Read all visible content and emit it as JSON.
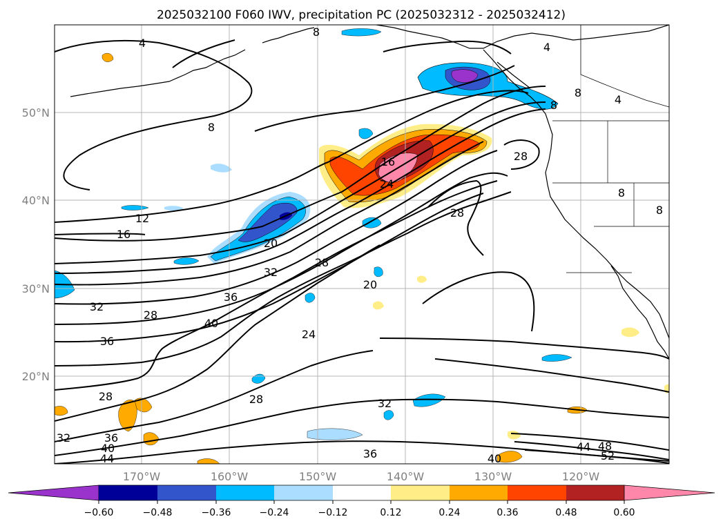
{
  "title": "2025032100 F060 IWV, precipitation PC (2025032312 - 2025032412)",
  "map": {
    "lon_labels": [
      "170°W",
      "160°W",
      "150°W",
      "140°W",
      "130°W",
      "120°W"
    ],
    "lat_labels": [
      "50°N",
      "40°N",
      "30°N",
      "20°N"
    ],
    "contour_labels": [
      "4",
      "4",
      "8",
      "8",
      "4",
      "8",
      "12",
      "16",
      "20",
      "16",
      "24",
      "28",
      "28",
      "32",
      "28",
      "36",
      "40",
      "32",
      "28",
      "24",
      "20",
      "36",
      "28",
      "28",
      "32",
      "36",
      "40",
      "44",
      "32",
      "36",
      "40",
      "44",
      "48",
      "52",
      "8",
      "8",
      "8"
    ],
    "colors": {
      "neg_extreme": "#9933cc",
      "neg_strong": "#000099",
      "neg_mid": "#3355cc",
      "neg_low": "#00bbff",
      "neg_weak": "#aaddff",
      "pos_weak": "#ffee88",
      "pos_low": "#ffaa00",
      "pos_mid": "#ff4400",
      "pos_strong": "#b22222",
      "pos_extreme": "#ff88aa"
    }
  },
  "colorbar": {
    "ticks": [
      "−0.60",
      "−0.48",
      "−0.36",
      "−0.24",
      "−0.12",
      "0.12",
      "0.24",
      "0.36",
      "0.48",
      "0.60"
    ],
    "colors": [
      "#9933cc",
      "#000099",
      "#3355cc",
      "#00bbff",
      "#aaddff",
      "#ffffff",
      "#ffee88",
      "#ffaa00",
      "#ff4400",
      "#b22222",
      "#ff88aa"
    ]
  }
}
